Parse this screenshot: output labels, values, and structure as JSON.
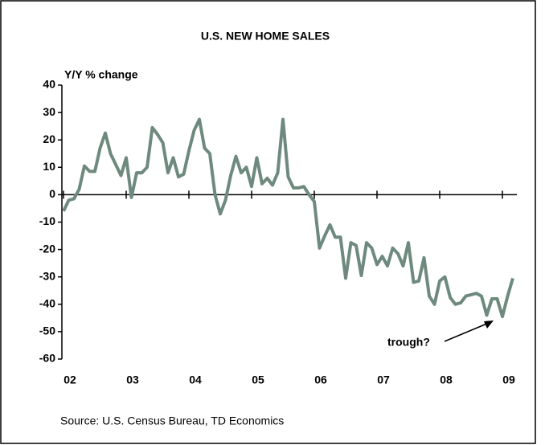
{
  "chart_data": {
    "type": "line",
    "title": "U.S. NEW HOME SALES",
    "y_label": "Y/Y % change",
    "categories": [
      "02",
      null,
      null,
      null,
      null,
      null,
      null,
      null,
      null,
      null,
      null,
      null,
      "03",
      null,
      null,
      null,
      null,
      null,
      null,
      null,
      null,
      null,
      null,
      null,
      "04",
      null,
      null,
      null,
      null,
      null,
      null,
      null,
      null,
      null,
      null,
      null,
      "05",
      null,
      null,
      null,
      null,
      null,
      null,
      null,
      null,
      null,
      null,
      null,
      "06",
      null,
      null,
      null,
      null,
      null,
      null,
      null,
      null,
      null,
      null,
      null,
      "07",
      null,
      null,
      null,
      null,
      null,
      null,
      null,
      null,
      null,
      null,
      null,
      "08",
      null,
      null,
      null,
      null,
      null,
      null,
      null,
      null,
      null,
      null,
      null,
      "09",
      null,
      null
    ],
    "series": [
      {
        "name": "New home sales",
        "color": "#6e8a7e",
        "values": [
          -6,
          -2,
          -1.5,
          2,
          10.5,
          8.5,
          8.5,
          17,
          22.5,
          15,
          11,
          7,
          13.5,
          -1,
          8,
          8,
          10,
          24.5,
          22,
          19,
          8,
          13.5,
          6.5,
          7.5,
          16,
          23.5,
          27.5,
          17,
          15,
          0,
          -7,
          -2,
          7,
          14,
          8,
          10,
          3,
          13.5,
          4,
          6,
          3.5,
          8,
          27.5,
          6.5,
          2.5,
          2.5,
          3,
          0,
          -2.5,
          -19.5,
          -15,
          -11,
          -15.5,
          -15.5,
          -30.5,
          -17.5,
          -18.5,
          -29.5,
          -17.5,
          -19.5,
          -25.5,
          -22.5,
          -26,
          -19.5,
          -21.5,
          -26,
          -17.5,
          -32,
          -31.5,
          -23,
          -37,
          -40,
          -31.5,
          -30,
          -37.5,
          -40,
          -39.5,
          -37,
          -36.5,
          -36,
          -37,
          -44,
          -38,
          -38,
          -44.5,
          -37,
          -30.5
        ]
      }
    ],
    "ylim": [
      -60,
      40
    ],
    "yticks": [
      -60,
      -50,
      -40,
      -30,
      -20,
      -10,
      0,
      10,
      20,
      30,
      40
    ],
    "annotation": "trough?",
    "source": "Source: U.S. Census Bureau, TD Economics"
  }
}
